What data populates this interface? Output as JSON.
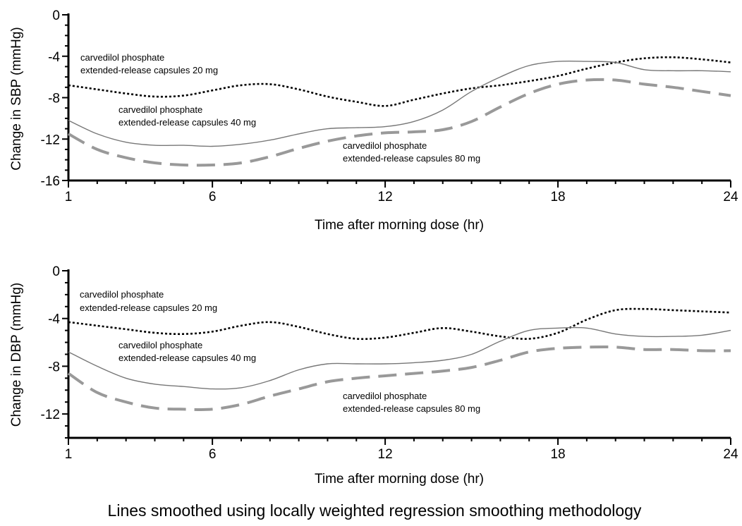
{
  "chart_data": [
    {
      "type": "line",
      "xlabel": "Time after morning dose (hr)",
      "ylabel": "Change in SBP (mmHg)",
      "xlim": [
        1,
        24
      ],
      "ylim": [
        -16,
        0
      ],
      "x_ticks": [
        1,
        6,
        12,
        18,
        24
      ],
      "y_ticks": [
        0,
        -4,
        -8,
        -12,
        -16
      ],
      "series": [
        {
          "name": "carvedilol phosphate extended-release capsules 20 mg",
          "style": "dotted",
          "color": "#000000",
          "x": [
            1,
            2,
            3,
            4,
            5,
            6,
            7,
            8,
            9,
            10,
            11,
            12,
            13,
            14,
            15,
            16,
            17,
            18,
            19,
            20,
            21,
            22,
            23,
            24
          ],
          "y": [
            -6.8,
            -7.2,
            -7.6,
            -7.9,
            -7.8,
            -7.3,
            -6.8,
            -6.7,
            -7.2,
            -7.9,
            -8.4,
            -8.8,
            -8.2,
            -7.6,
            -7.1,
            -6.8,
            -6.4,
            -5.9,
            -5.2,
            -4.6,
            -4.2,
            -4.1,
            -4.3,
            -4.6
          ]
        },
        {
          "name": "carvedilol phosphate extended-release capsules 40 mg",
          "style": "solid",
          "color": "#777777",
          "x": [
            1,
            2,
            3,
            4,
            5,
            6,
            7,
            8,
            9,
            10,
            11,
            12,
            13,
            14,
            15,
            16,
            17,
            18,
            19,
            20,
            21,
            22,
            23,
            24
          ],
          "y": [
            -10.2,
            -11.5,
            -12.3,
            -12.6,
            -12.6,
            -12.7,
            -12.5,
            -12.1,
            -11.5,
            -11.0,
            -10.9,
            -10.8,
            -10.3,
            -9.2,
            -7.4,
            -6.0,
            -4.9,
            -4.5,
            -4.5,
            -4.6,
            -5.3,
            -5.4,
            -5.4,
            -5.5
          ]
        },
        {
          "name": "carvedilol phosphate extended-release capsules 80 mg",
          "style": "dashed",
          "color": "#999999",
          "x": [
            1,
            2,
            3,
            4,
            5,
            6,
            7,
            8,
            9,
            10,
            11,
            12,
            13,
            14,
            15,
            16,
            17,
            18,
            19,
            20,
            21,
            22,
            23,
            24
          ],
          "y": [
            -11.5,
            -13.0,
            -13.8,
            -14.3,
            -14.5,
            -14.5,
            -14.3,
            -13.7,
            -12.9,
            -12.2,
            -11.7,
            -11.4,
            -11.3,
            -11.1,
            -10.3,
            -8.9,
            -7.6,
            -6.7,
            -6.3,
            -6.3,
            -6.7,
            -7.0,
            -7.4,
            -7.8
          ]
        }
      ]
    },
    {
      "type": "line",
      "xlabel": "Time after morning dose (hr)",
      "ylabel": "Change in DBP (mmHg)",
      "xlim": [
        1,
        24
      ],
      "ylim": [
        -14,
        0
      ],
      "x_ticks": [
        1,
        6,
        12,
        18,
        24
      ],
      "y_ticks": [
        0,
        -4,
        -8,
        -12
      ],
      "series": [
        {
          "name": "carvedilol phosphate extended-release capsules 20 mg",
          "style": "dotted",
          "color": "#000000",
          "x": [
            1,
            2,
            3,
            4,
            5,
            6,
            7,
            8,
            9,
            10,
            11,
            12,
            13,
            14,
            15,
            16,
            17,
            18,
            19,
            20,
            21,
            22,
            23,
            24
          ],
          "y": [
            -4.3,
            -4.6,
            -4.9,
            -5.2,
            -5.3,
            -5.1,
            -4.6,
            -4.3,
            -4.7,
            -5.3,
            -5.7,
            -5.6,
            -5.2,
            -4.8,
            -5.1,
            -5.5,
            -5.7,
            -5.2,
            -4.1,
            -3.3,
            -3.2,
            -3.3,
            -3.4,
            -3.5
          ]
        },
        {
          "name": "carvedilol phosphate extended-release capsules 40 mg",
          "style": "solid",
          "color": "#777777",
          "x": [
            1,
            2,
            3,
            4,
            5,
            6,
            7,
            8,
            9,
            10,
            11,
            12,
            13,
            14,
            15,
            16,
            17,
            18,
            19,
            20,
            21,
            22,
            23,
            24
          ],
          "y": [
            -6.8,
            -8.0,
            -9.0,
            -9.5,
            -9.7,
            -9.9,
            -9.8,
            -9.2,
            -8.3,
            -7.8,
            -7.8,
            -7.8,
            -7.7,
            -7.5,
            -7.0,
            -5.9,
            -5.0,
            -4.8,
            -4.8,
            -5.3,
            -5.5,
            -5.5,
            -5.4,
            -5.0
          ]
        },
        {
          "name": "carvedilol phosphate extended-release capsules 80 mg",
          "style": "dashed",
          "color": "#999999",
          "x": [
            1,
            2,
            3,
            4,
            5,
            6,
            7,
            8,
            9,
            10,
            11,
            12,
            13,
            14,
            15,
            16,
            17,
            18,
            19,
            20,
            21,
            22,
            23,
            24
          ],
          "y": [
            -8.6,
            -10.2,
            -11.0,
            -11.5,
            -11.6,
            -11.6,
            -11.2,
            -10.5,
            -9.9,
            -9.3,
            -9.0,
            -8.8,
            -8.6,
            -8.4,
            -8.1,
            -7.5,
            -6.8,
            -6.5,
            -6.4,
            -6.4,
            -6.6,
            -6.6,
            -6.7,
            -6.7
          ]
        }
      ]
    }
  ],
  "footer": "Lines smoothed using locally weighted regression smoothing methodology",
  "labels": {
    "sbp_20": [
      "carvedilol phosphate",
      "extended-release capsules 20 mg"
    ],
    "sbp_40": [
      "carvedilol phosphate",
      "extended-release capsules 40 mg"
    ],
    "sbp_80": [
      "carvedilol phosphate",
      "extended-release capsules 80 mg"
    ],
    "dbp_20": [
      "carvedilol phosphate",
      "extended-release capsules 20 mg"
    ],
    "dbp_40": [
      "carvedilol phosphate",
      "extended-release capsules 40 mg"
    ],
    "dbp_80": [
      "carvedilol phosphate",
      "extended-release capsules 80 mg"
    ]
  }
}
